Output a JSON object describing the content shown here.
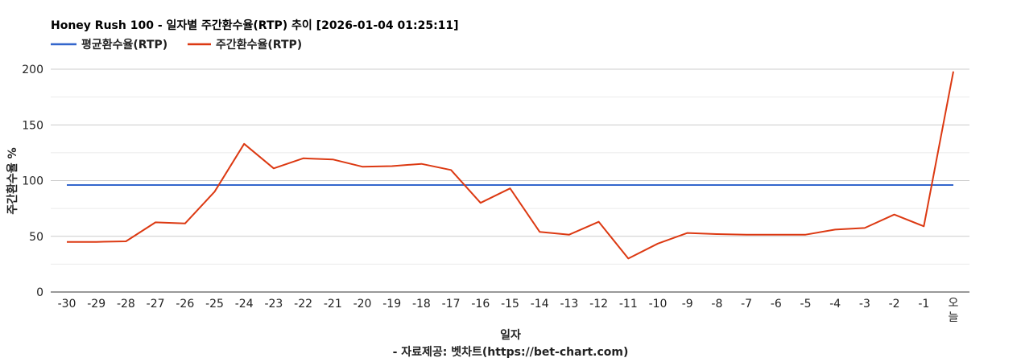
{
  "chart_data": {
    "type": "line",
    "title": "Honey Rush 100 - 일자별 주간환수율(RTP) 추이 [2026-01-04 01:25:11]",
    "xlabel": "일자",
    "ylabel": "주간환수율 %",
    "credit": "- 자료제공: 벳차트(https://bet-chart.com)",
    "legend_position": "top-left",
    "grid": true,
    "ylim": [
      0,
      200
    ],
    "yticks": [
      "0",
      "50",
      "100",
      "150",
      "200"
    ],
    "categories": [
      "-30",
      "-29",
      "-28",
      "-27",
      "-26",
      "-25",
      "-24",
      "-23",
      "-22",
      "-21",
      "-20",
      "-19",
      "-18",
      "-17",
      "-16",
      "-15",
      "-14",
      "-13",
      "-12",
      "-11",
      "-10",
      "-9",
      "-8",
      "-7",
      "-6",
      "-5",
      "-4",
      "-3",
      "-2",
      "-1",
      "오늘"
    ],
    "series": [
      {
        "name": "평균환수율(RTP)",
        "color": "#3366cc",
        "values": [
          96,
          96,
          96,
          96,
          96,
          96,
          96,
          96,
          96,
          96,
          96,
          96,
          96,
          96,
          96,
          96,
          96,
          96,
          96,
          96,
          96,
          96,
          96,
          96,
          96,
          96,
          96,
          96,
          96,
          96,
          96
        ]
      },
      {
        "name": "주간환수율(RTP)",
        "color": "#dc3912",
        "values": [
          45,
          45,
          45.5,
          62.5,
          61.5,
          90,
          133,
          111,
          120,
          119,
          112.5,
          113,
          115,
          109.5,
          80,
          93,
          54,
          51.5,
          63,
          30,
          43.5,
          53,
          52,
          51.5,
          51.5,
          51.5,
          56,
          57.5,
          69.5,
          59,
          198
        ]
      }
    ]
  }
}
